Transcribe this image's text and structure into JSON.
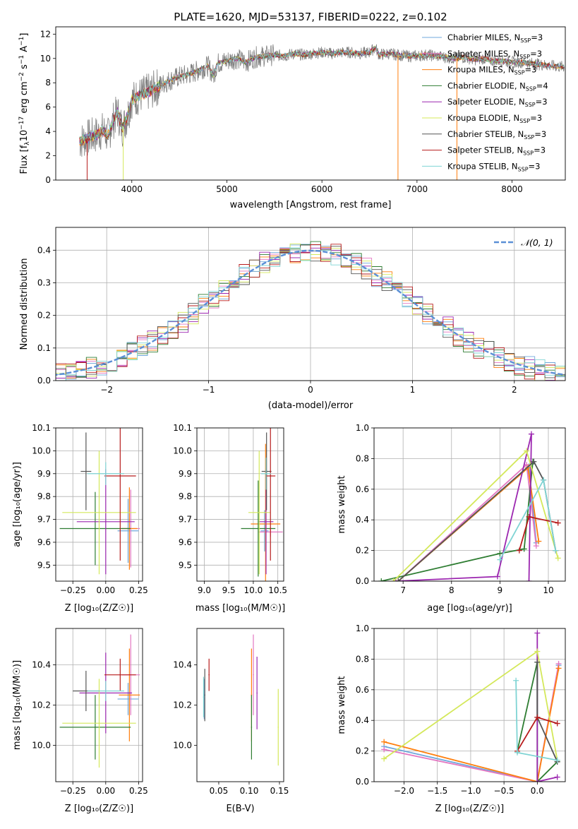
{
  "figure_title": "PLATE=1620, MJD=53137, FIBERID=0222, z=0.102",
  "colors": {
    "Chabrier MILES": "#6fa8dc",
    "Salpeter MILES": "#e377c2",
    "Kroupa MILES": "#ff7f0e",
    "Chabrier ELODIE": "#2e7d32",
    "Salpeter ELODIE": "#9c27b0",
    "Kroupa ELODIE": "#d4e85a",
    "Chabrier STELIB": "#555555",
    "Salpeter STELIB": "#b71c1c",
    "Kroupa STELIB": "#7fd4d4",
    "gaussian": "#5b8fd6"
  },
  "chart_data": [
    {
      "id": "spectrum",
      "type": "line",
      "title": "PLATE=1620, MJD=53137, FIBERID=0222, z=0.102",
      "xlabel": "wavelength [Angstrom, rest frame]",
      "ylabel_parts": [
        "Flux [f",
        "λ",
        "10",
        "−17",
        " erg cm",
        "−2",
        " s",
        "−1",
        " A",
        "−1",
        "]"
      ],
      "xlim": [
        3200,
        8560
      ],
      "ylim": [
        0,
        12.6
      ],
      "xticks": [
        4000,
        5000,
        6000,
        7000,
        8000
      ],
      "yticks": [
        0,
        2,
        4,
        6,
        8,
        10,
        12
      ],
      "grid": false,
      "legend_position": "right",
      "legend": [
        {
          "name": "Chabrier MILES",
          "nssp": "3"
        },
        {
          "name": "Salpeter MILES",
          "nssp": "3"
        },
        {
          "name": "Kroupa MILES",
          "nssp": "3"
        },
        {
          "name": "Chabrier ELODIE",
          "nssp": "4"
        },
        {
          "name": "Salpeter ELODIE",
          "nssp": "3"
        },
        {
          "name": "Kroupa ELODIE",
          "nssp": "3"
        },
        {
          "name": "Chabrier STELIB",
          "nssp": "3"
        },
        {
          "name": "Salpeter STELIB",
          "nssp": "3"
        },
        {
          "name": "Kroupa STELIB",
          "nssp": "3"
        }
      ],
      "legend_text": {
        "nssp_prefix": ", N",
        "nssp_sub": "SSP",
        "eq": "="
      },
      "data_x": [
        3450,
        3550,
        3650,
        3700,
        3750,
        3800,
        3850,
        3900,
        3950,
        4000,
        4100,
        4200,
        4300,
        4400,
        4500,
        4600,
        4700,
        4800,
        4860,
        4900,
        5000,
        5100,
        5200,
        5300,
        5400,
        5500,
        5600,
        5700,
        5800,
        5900,
        6000,
        6100,
        6200,
        6300,
        6400,
        6500,
        6563,
        6600,
        6700,
        6800,
        6900,
        7000,
        7100,
        7200,
        7300,
        7400,
        7500,
        7600,
        7700,
        7800,
        7900,
        8000,
        8100,
        8200,
        8300,
        8400,
        8550
      ],
      "data_y": [
        3.2,
        3.5,
        3.8,
        4.1,
        3.6,
        4.8,
        5.6,
        4.2,
        5.2,
        6.6,
        7.0,
        7.3,
        7.8,
        8.2,
        8.5,
        8.7,
        9.0,
        9.4,
        8.6,
        9.6,
        9.8,
        10.0,
        9.7,
        10.1,
        10.2,
        10.3,
        10.2,
        10.4,
        10.3,
        10.4,
        10.5,
        10.4,
        10.5,
        10.5,
        10.4,
        10.5,
        10.9,
        10.3,
        10.4,
        10.3,
        10.2,
        10.2,
        10.3,
        10.2,
        10.1,
        10.0,
        10.1,
        9.9,
        10.0,
        9.8,
        9.8,
        9.7,
        9.7,
        9.6,
        9.5,
        9.4,
        9.3
      ]
    },
    {
      "id": "residuals",
      "type": "histogram",
      "xlabel": "(data-model)/error",
      "ylabel": "Normed distribution",
      "xlim": [
        -2.5,
        2.5
      ],
      "ylim": [
        0,
        0.47
      ],
      "xticks": [
        -2,
        -1,
        0,
        1,
        2
      ],
      "xtick_labels": [
        "−2",
        "−1",
        "0",
        "1",
        "2"
      ],
      "yticks": [
        0.0,
        0.1,
        0.2,
        0.3,
        0.4
      ],
      "grid": true,
      "legend": [
        {
          "name": "𝒩(0, 1)"
        }
      ],
      "legend_position": "top-right",
      "bin_width": 0.1
    },
    {
      "id": "age-vs-Z",
      "type": "errorbar",
      "xlabel": "Z [log₁₀(Z/Z☉)]",
      "ylabel": "age  [log₁₀(age/yr)]",
      "xlim": [
        -0.38,
        0.28
      ],
      "ylim": [
        9.43,
        10.1
      ],
      "xticks": [
        -0.25,
        0.0,
        0.25
      ],
      "xtick_labels": [
        "−0.25",
        "0.00",
        "0.25"
      ],
      "yticks": [
        9.5,
        9.6,
        9.7,
        9.8,
        9.9,
        10.0,
        10.1
      ],
      "grid": true,
      "series": [
        {
          "color_key": "Chabrier MILES",
          "x": 0.17,
          "y": 9.65,
          "xerr": 0.08,
          "yerr": 0.14
        },
        {
          "color_key": "Salpeter MILES",
          "x": 0.19,
          "y": 9.66,
          "xerr": 0.07,
          "yerr": 0.17
        },
        {
          "color_key": "Kroupa MILES",
          "x": 0.18,
          "y": 9.66,
          "xerr": 0.06,
          "yerr": 0.18
        },
        {
          "color_key": "Chabrier ELODIE",
          "x": -0.08,
          "y": 9.66,
          "xerr": 0.27,
          "yerr": 0.16
        },
        {
          "color_key": "Salpeter ELODIE",
          "x": 0.0,
          "y": 9.69,
          "xerr": 0.22,
          "yerr": 0.23
        },
        {
          "color_key": "Kroupa ELODIE",
          "x": -0.05,
          "y": 9.73,
          "xerr": 0.28,
          "yerr": 0.27
        },
        {
          "color_key": "Chabrier STELIB",
          "x": -0.15,
          "y": 9.91,
          "xerr": 0.04,
          "yerr": 0.17
        },
        {
          "color_key": "Salpeter STELIB",
          "x": 0.11,
          "y": 9.89,
          "xerr": 0.12,
          "yerr": 0.37
        },
        {
          "color_key": "Kroupa STELIB",
          "x": 0.0,
          "y": 9.9,
          "xerr": 0.14,
          "yerr": 0.05
        }
      ]
    },
    {
      "id": "age-vs-mass",
      "type": "errorbar",
      "xlabel": "mass [log₁₀(M/M☉)]",
      "xlim": [
        8.85,
        10.62
      ],
      "ylim": [
        9.43,
        10.1
      ],
      "xticks": [
        9.0,
        9.5,
        10.0,
        10.5
      ],
      "xtick_labels": [
        "9.0",
        "9.5",
        "10.0",
        "10.5"
      ],
      "yticks": [
        9.5,
        9.6,
        9.7,
        9.8,
        9.9,
        10.0,
        10.1
      ],
      "grid": true,
      "series": [
        {
          "color_key": "Chabrier MILES",
          "x": 10.23,
          "y": 9.65,
          "xerr": 0.08,
          "yerr": 0.09
        },
        {
          "color_key": "Salpeter MILES",
          "x": 10.35,
          "y": 9.645,
          "xerr": 0.25,
          "yerr": 0.02
        },
        {
          "color_key": "Kroupa MILES",
          "x": 10.25,
          "y": 9.68,
          "xerr": 0.3,
          "yerr": 0.35
        },
        {
          "color_key": "Chabrier ELODIE",
          "x": 10.1,
          "y": 9.66,
          "xerr": 0.35,
          "yerr": 0.21
        },
        {
          "color_key": "Salpeter ELODIE",
          "x": 10.26,
          "y": 9.69,
          "xerr": 0.15,
          "yerr": 0.23
        },
        {
          "color_key": "Kroupa ELODIE",
          "x": 10.12,
          "y": 9.73,
          "xerr": 0.22,
          "yerr": 0.27
        },
        {
          "color_key": "Chabrier STELIB",
          "x": 10.27,
          "y": 9.91,
          "xerr": 0.1,
          "yerr": 0.17
        },
        {
          "color_key": "Salpeter STELIB",
          "x": 10.35,
          "y": 9.89,
          "xerr": 0.1,
          "yerr": 0.37
        },
        {
          "color_key": "Kroupa STELIB",
          "x": 10.26,
          "y": 9.9,
          "xerr": 0.1,
          "yerr": 0.07
        }
      ]
    },
    {
      "id": "weight-vs-age",
      "type": "line",
      "xlabel": "age  [log₁₀(age/yr)]",
      "ylabel": "mass weight",
      "xlim": [
        6.4,
        10.35
      ],
      "ylim": [
        0,
        1.0
      ],
      "xticks": [
        7,
        8,
        9,
        10
      ],
      "yticks": [
        0.0,
        0.2,
        0.4,
        0.6,
        0.8,
        1.0
      ],
      "grid": true,
      "series": [
        {
          "color_key": "Chabrier MILES",
          "x": [
            6.9,
            9.6,
            9.75
          ],
          "y": [
            0.0,
            0.75,
            0.25
          ]
        },
        {
          "color_key": "Salpeter MILES",
          "x": [
            6.9,
            9.55,
            9.75
          ],
          "y": [
            0.0,
            0.76,
            0.23
          ]
        },
        {
          "color_key": "Kroupa MILES",
          "x": [
            6.9,
            9.58,
            9.8
          ],
          "y": [
            0.0,
            0.74,
            0.26
          ]
        },
        {
          "color_key": "Chabrier ELODIE",
          "x": [
            6.55,
            9.0,
            9.5,
            9.68
          ],
          "y": [
            0.0,
            0.18,
            0.21,
            0.78
          ]
        },
        {
          "color_key": "Salpeter ELODIE",
          "x": [
            6.85,
            8.95,
            9.65,
            9.6
          ],
          "y": [
            0.0,
            0.03,
            0.96,
            0.0
          ]
        },
        {
          "color_key": "Kroupa ELODIE",
          "x": [
            6.8,
            9.55,
            10.2
          ],
          "y": [
            0.0,
            0.85,
            0.15
          ]
        },
        {
          "color_key": "Chabrier STELIB",
          "x": [
            6.9,
            9.7,
            9.9,
            10.15
          ],
          "y": [
            0.0,
            0.78,
            0.66,
            0.2
          ]
        },
        {
          "color_key": "Salpeter STELIB",
          "x": [
            9.4,
            9.6,
            10.2
          ],
          "y": [
            0.2,
            0.42,
            0.38
          ]
        },
        {
          "color_key": "Kroupa STELIB",
          "x": [
            9.0,
            9.9,
            10.15
          ],
          "y": [
            0.14,
            0.66,
            0.2
          ]
        }
      ]
    },
    {
      "id": "mass-vs-Z",
      "type": "errorbar",
      "xlabel": "Z [log₁₀(Z/Z☉)]",
      "ylabel": "mass [log₁₀(M/M☉)]",
      "xlim": [
        -0.38,
        0.28
      ],
      "ylim": [
        9.82,
        10.58
      ],
      "xticks": [
        -0.25,
        0.0,
        0.25
      ],
      "xtick_labels": [
        "−0.25",
        "0.00",
        "0.25"
      ],
      "yticks": [
        10.0,
        10.2,
        10.4
      ],
      "grid": true,
      "series": [
        {
          "color_key": "Chabrier MILES",
          "x": 0.17,
          "y": 10.23,
          "xerr": 0.08,
          "yerr": 0.08
        },
        {
          "color_key": "Salpeter MILES",
          "x": 0.19,
          "y": 10.35,
          "xerr": 0.07,
          "yerr": 0.2
        },
        {
          "color_key": "Kroupa MILES",
          "x": 0.18,
          "y": 10.25,
          "xerr": 0.08,
          "yerr": 0.23
        },
        {
          "color_key": "Chabrier ELODIE",
          "x": -0.08,
          "y": 10.09,
          "xerr": 0.27,
          "yerr": 0.16
        },
        {
          "color_key": "Salpeter ELODIE",
          "x": 0.0,
          "y": 10.26,
          "xerr": 0.2,
          "yerr": 0.2
        },
        {
          "color_key": "Kroupa ELODIE",
          "x": -0.05,
          "y": 10.11,
          "xerr": 0.28,
          "yerr": 0.22
        },
        {
          "color_key": "Chabrier STELIB",
          "x": -0.15,
          "y": 10.27,
          "xerr": 0.1,
          "yerr": 0.1
        },
        {
          "color_key": "Salpeter STELIB",
          "x": 0.11,
          "y": 10.35,
          "xerr": 0.12,
          "yerr": 0.08
        },
        {
          "color_key": "Kroupa STELIB",
          "x": 0.0,
          "y": 10.27,
          "xerr": 0.14,
          "yerr": 0.05
        }
      ]
    },
    {
      "id": "mass-vs-EBV",
      "type": "errorbar",
      "xlabel": "E(B-V)",
      "xlim": [
        0.014,
        0.157
      ],
      "ylim": [
        9.82,
        10.58
      ],
      "xticks": [
        0.05,
        0.1,
        0.15
      ],
      "xtick_labels": [
        "0.05",
        "0.10",
        "0.15"
      ],
      "yticks": [
        10.0,
        10.2,
        10.4
      ],
      "grid": false,
      "series": [
        {
          "color_key": "Chabrier MILES",
          "x": 0.026,
          "y": 10.23,
          "xerr": 0.0,
          "yerr": 0.1
        },
        {
          "color_key": "Salpeter MILES",
          "x": 0.107,
          "y": 10.35,
          "xerr": 0.0,
          "yerr": 0.2
        },
        {
          "color_key": "Kroupa MILES",
          "x": 0.104,
          "y": 10.25,
          "xerr": 0.0,
          "yerr": 0.23
        },
        {
          "color_key": "Chabrier ELODIE",
          "x": 0.104,
          "y": 10.09,
          "xerr": 0.0,
          "yerr": 0.16
        },
        {
          "color_key": "Salpeter ELODIE",
          "x": 0.113,
          "y": 10.26,
          "xerr": 0.0,
          "yerr": 0.18
        },
        {
          "color_key": "Kroupa ELODIE",
          "x": 0.148,
          "y": 10.09,
          "xerr": 0.0,
          "yerr": 0.19
        },
        {
          "color_key": "Chabrier STELIB",
          "x": 0.027,
          "y": 10.25,
          "xerr": 0.0,
          "yerr": 0.13
        },
        {
          "color_key": "Salpeter STELIB",
          "x": 0.034,
          "y": 10.35,
          "xerr": 0.0,
          "yerr": 0.08
        },
        {
          "color_key": "Kroupa STELIB",
          "x": 0.025,
          "y": 10.24,
          "xerr": 0.0,
          "yerr": 0.1
        }
      ]
    },
    {
      "id": "weight-vs-Z",
      "type": "line",
      "xlabel": "Z [log₁₀(Z/Z☉)]",
      "ylabel": "mass weight",
      "xlim": [
        -2.45,
        0.42
      ],
      "ylim": [
        0,
        1.0
      ],
      "xticks": [
        -2.0,
        -1.5,
        -1.0,
        -0.5,
        0.0
      ],
      "xtick_labels": [
        "−2.0",
        "−1.5",
        "−1.0",
        "−0.5",
        "0.0"
      ],
      "yticks": [
        0.0,
        0.2,
        0.4,
        0.6,
        0.8,
        1.0
      ],
      "grid": true,
      "series": [
        {
          "color_key": "Chabrier MILES",
          "x": [
            -2.3,
            0.0,
            0.32
          ],
          "y": [
            0.23,
            0.0,
            0.76
          ]
        },
        {
          "color_key": "Salpeter MILES",
          "x": [
            -2.3,
            0.0,
            0.32
          ],
          "y": [
            0.21,
            0.0,
            0.77
          ]
        },
        {
          "color_key": "Kroupa MILES",
          "x": [
            -2.3,
            0.0,
            0.32
          ],
          "y": [
            0.26,
            0.0,
            0.74
          ]
        },
        {
          "color_key": "Chabrier ELODIE",
          "x": [
            -0.3,
            0.0,
            0.0,
            0.3
          ],
          "y": [
            0.2,
            0.78,
            0.0,
            0.13
          ]
        },
        {
          "color_key": "Salpeter ELODIE",
          "x": [
            0.3,
            0.0,
            0.0
          ],
          "y": [
            0.03,
            0.0,
            0.97
          ]
        },
        {
          "color_key": "Kroupa ELODIE",
          "x": [
            -2.3,
            0.0,
            0.3
          ],
          "y": [
            0.15,
            0.85,
            0.14
          ]
        },
        {
          "color_key": "Chabrier STELIB",
          "x": [
            0.0,
            0.0,
            0.3
          ],
          "y": [
            0.78,
            0.42,
            0.13
          ]
        },
        {
          "color_key": "Salpeter STELIB",
          "x": [
            -0.3,
            0.0,
            0.3
          ],
          "y": [
            0.2,
            0.42,
            0.38
          ]
        },
        {
          "color_key": "Kroupa STELIB",
          "x": [
            -0.32,
            -0.3,
            0.3
          ],
          "y": [
            0.66,
            0.19,
            0.14
          ]
        }
      ]
    }
  ]
}
